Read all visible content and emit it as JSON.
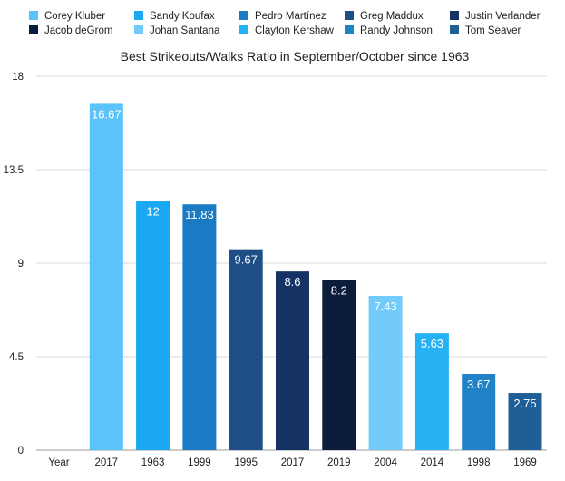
{
  "chart_data": {
    "type": "bar",
    "title": "Best Strikeouts/Walks Ratio in September/October since 1963",
    "xlabel": "Year",
    "ylabel": "",
    "ylim": [
      0,
      18
    ],
    "yticks": [
      0,
      4.5,
      9,
      13.5,
      18
    ],
    "ytick_labels": [
      "0",
      "4.5",
      "9",
      "13.5",
      "18"
    ],
    "grid": true,
    "legend_position": "top",
    "series": [
      {
        "name": "Corey Kluber",
        "category": "2017",
        "value": 16.67,
        "value_label": "16.67",
        "color": "#5ac3fa"
      },
      {
        "name": "Sandy Koufax",
        "category": "1963",
        "value": 12,
        "value_label": "12",
        "color": "#1aa8f2"
      },
      {
        "name": "Pedro Martínez",
        "category": "1999",
        "value": 11.83,
        "value_label": "11.83",
        "color": "#1a7bc4"
      },
      {
        "name": "Greg Maddux",
        "category": "1995",
        "value": 9.67,
        "value_label": "9.67",
        "color": "#1d4e86"
      },
      {
        "name": "Justin Verlander",
        "category": "2017",
        "value": 8.6,
        "value_label": "8.6",
        "color": "#143263"
      },
      {
        "name": "Jacob deGrom",
        "category": "2019",
        "value": 8.2,
        "value_label": "8.2",
        "color": "#0b1c3c"
      },
      {
        "name": "Johan Santana",
        "category": "2004",
        "value": 7.43,
        "value_label": "7.43",
        "color": "#72cbfb"
      },
      {
        "name": "Clayton Kershaw",
        "category": "2014",
        "value": 5.63,
        "value_label": "5.63",
        "color": "#27b1f5"
      },
      {
        "name": "Randy Johnson",
        "category": "1998",
        "value": 3.67,
        "value_label": "3.67",
        "color": "#2083c8"
      },
      {
        "name": "Tom Seaver",
        "category": "1969",
        "value": 2.75,
        "value_label": "2.75",
        "color": "#1e5f97"
      }
    ]
  }
}
